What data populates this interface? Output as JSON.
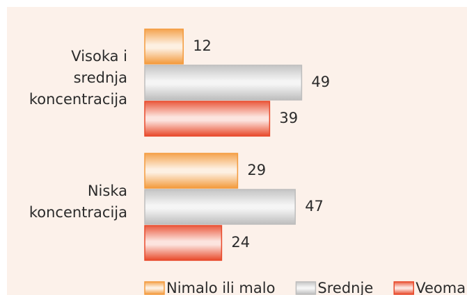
{
  "chart_data": {
    "type": "bar",
    "orientation": "horizontal",
    "categories": [
      "Visoka i srednja koncentracija",
      "Niska koncentracija"
    ],
    "series": [
      {
        "name": "Nimalo ili malo",
        "color": "#f39a3c",
        "values": [
          12,
          29
        ]
      },
      {
        "name": "Srednje",
        "color": "#bdbdbd",
        "values": [
          49,
          47
        ]
      },
      {
        "name": "Veoma",
        "color": "#e8492a",
        "values": [
          39,
          24
        ]
      }
    ],
    "xlim": [
      0,
      100
    ],
    "legend": "bottom"
  }
}
